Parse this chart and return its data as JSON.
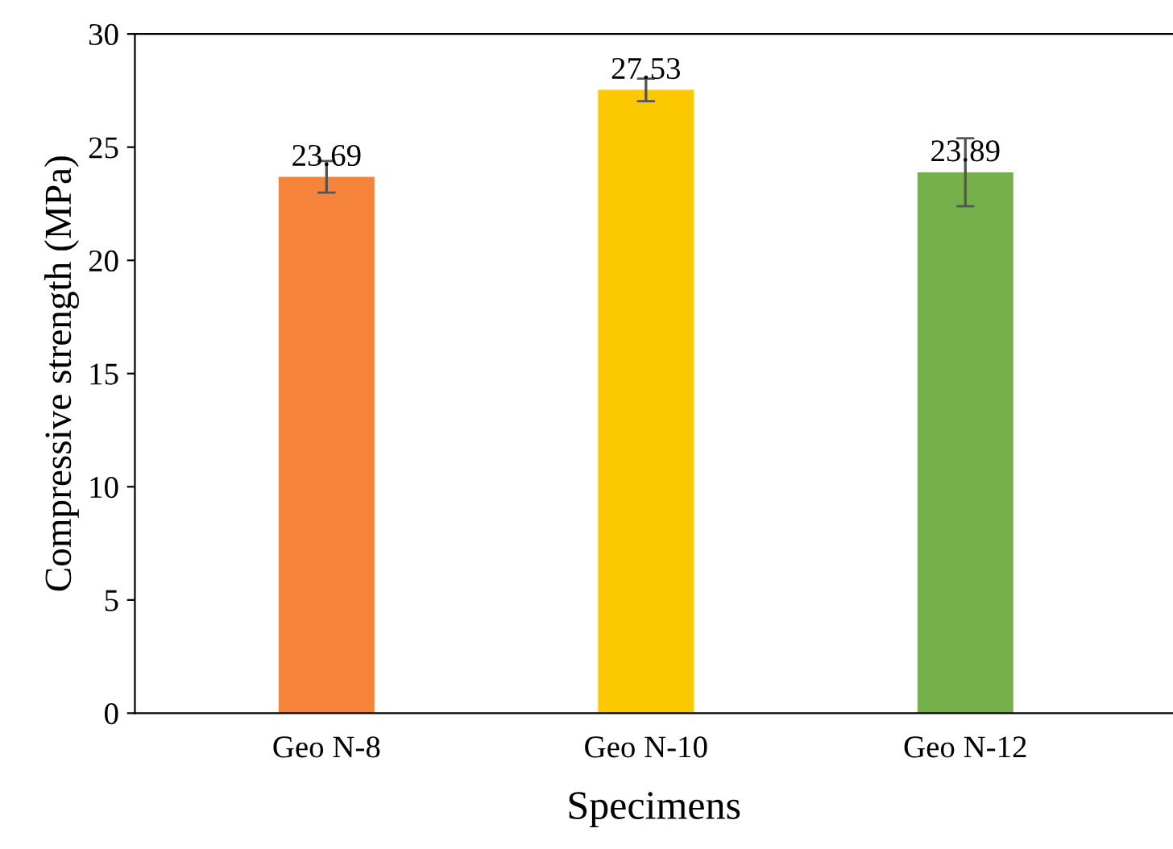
{
  "chart_data": {
    "type": "bar",
    "xlabel": "Specimens",
    "ylabel": "Compressive strength (MPa)",
    "categories": [
      "Geo N-8",
      "Geo N-10",
      "Geo N-12"
    ],
    "values": [
      23.69,
      27.53,
      23.89
    ],
    "colors": [
      "#f5843a",
      "#fcc800",
      "#76b04a"
    ],
    "errors": [
      0.7,
      0.5,
      1.5
    ],
    "ylim": [
      0,
      30
    ],
    "yticks": [
      0,
      5,
      10,
      15,
      20,
      25,
      30
    ],
    "data_labels": true,
    "grid": false,
    "legend": false
  }
}
